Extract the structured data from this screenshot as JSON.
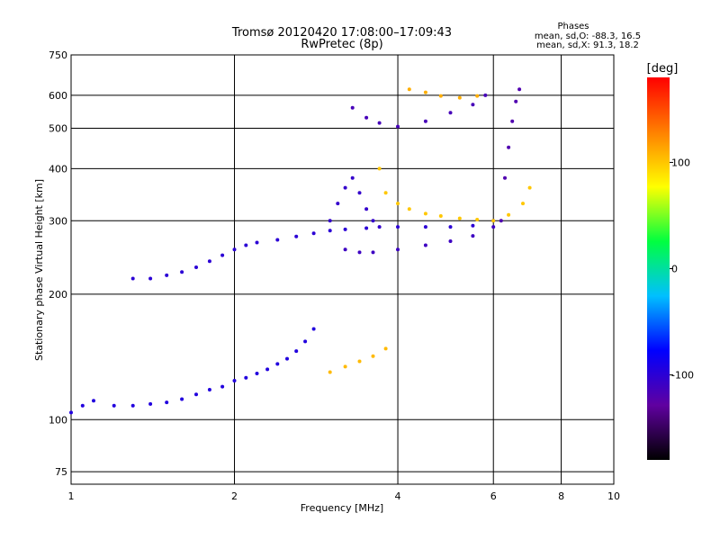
{
  "header": {
    "title_line1": "Tromsø 20120420 17:08:00–17:09:43",
    "title_line2": "RwPretec (8p)",
    "stats_title": "Phases",
    "stats_o": "mean, sd,O: -88.3, 16.5",
    "stats_x": "mean, sd,X: 91.3, 18.2"
  },
  "chart_data": {
    "type": "scatter",
    "x_scale": "log",
    "y_scale": "log",
    "xlabel": "Frequency [MHz]",
    "ylabel": "Stationary phase Virtual Height [km]",
    "xlim": [
      1,
      10
    ],
    "ylim": [
      70,
      750
    ],
    "x_ticks": [
      1,
      2,
      4,
      6,
      8,
      10
    ],
    "x_tick_labels": [
      "1",
      "2",
      "4",
      "6",
      "8",
      "10"
    ],
    "y_ticks": [
      75,
      100,
      200,
      300,
      400,
      500,
      600,
      750
    ],
    "y_tick_labels": [
      "75",
      "100",
      "200",
      "300",
      "400",
      "500",
      "600",
      "750"
    ],
    "grid": true,
    "colorbar": {
      "label": "[deg]",
      "range": [
        -180,
        180
      ],
      "ticks": [
        100,
        0,
        -100
      ],
      "tick_labels": [
        "100",
        "0",
        "-100"
      ],
      "colormap": [
        "#000000",
        "#6000a0",
        "#0000ff",
        "#00c0ff",
        "#00ff40",
        "#ffff00",
        "#ff8000",
        "#ff0000"
      ]
    },
    "series": [
      {
        "phase": -95,
        "x": [
          1.0,
          1.05,
          1.1,
          1.2,
          1.3,
          1.4,
          1.5,
          1.6,
          1.7,
          1.8,
          1.9,
          2.0,
          2.1,
          2.2,
          2.3,
          2.4,
          2.5,
          2.6,
          2.7,
          2.8
        ],
        "y": [
          104,
          108,
          111,
          108,
          108,
          109,
          110,
          112,
          115,
          118,
          120,
          124,
          126,
          129,
          132,
          136,
          140,
          146,
          154,
          165
        ]
      },
      {
        "phase": -100,
        "x": [
          1.3,
          1.4,
          1.5,
          1.6,
          1.7,
          1.8,
          1.9,
          2.0,
          2.1,
          2.2,
          2.4,
          2.6,
          2.8,
          3.0,
          3.2,
          3.5,
          4.0,
          4.5,
          5.0,
          5.5,
          6.0
        ],
        "y": [
          218,
          218,
          222,
          226,
          232,
          240,
          248,
          256,
          262,
          266,
          270,
          275,
          280,
          284,
          286,
          288,
          290,
          290,
          290,
          292,
          300
        ]
      },
      {
        "phase": -110,
        "x": [
          3.2,
          3.4,
          3.6,
          4.0,
          4.5,
          5.0,
          5.5,
          6.0
        ],
        "y": [
          256,
          252,
          252,
          256,
          262,
          268,
          276,
          290
        ]
      },
      {
        "phase": -105,
        "x": [
          3.0,
          3.1,
          3.2,
          3.3,
          3.4,
          3.5,
          3.6,
          3.7
        ],
        "y": [
          300,
          330,
          360,
          380,
          350,
          320,
          300,
          290
        ]
      },
      {
        "phase": -115,
        "x": [
          3.3,
          3.5,
          3.7,
          4.0,
          4.5,
          5.0,
          5.5,
          5.8
        ],
        "y": [
          560,
          530,
          515,
          505,
          520,
          545,
          570,
          600
        ]
      },
      {
        "phase": -120,
        "x": [
          6.2,
          6.3,
          6.4,
          6.5,
          6.6,
          6.7
        ],
        "y": [
          300,
          380,
          450,
          520,
          580,
          620
        ]
      },
      {
        "phase": 100,
        "x": [
          3.7,
          3.8,
          4.0,
          4.2,
          4.5,
          4.8,
          5.2,
          5.6,
          6.0,
          6.4,
          6.8,
          7.0
        ],
        "y": [
          400,
          350,
          330,
          320,
          312,
          308,
          304,
          302,
          300,
          310,
          330,
          360
        ]
      },
      {
        "phase": 105,
        "x": [
          3.0,
          3.2,
          3.4,
          3.6,
          3.8
        ],
        "y": [
          130,
          134,
          138,
          142,
          148
        ]
      },
      {
        "phase": 110,
        "x": [
          4.2,
          4.5,
          4.8,
          5.2,
          5.6
        ],
        "y": [
          620,
          610,
          598,
          592,
          598
        ]
      }
    ]
  }
}
